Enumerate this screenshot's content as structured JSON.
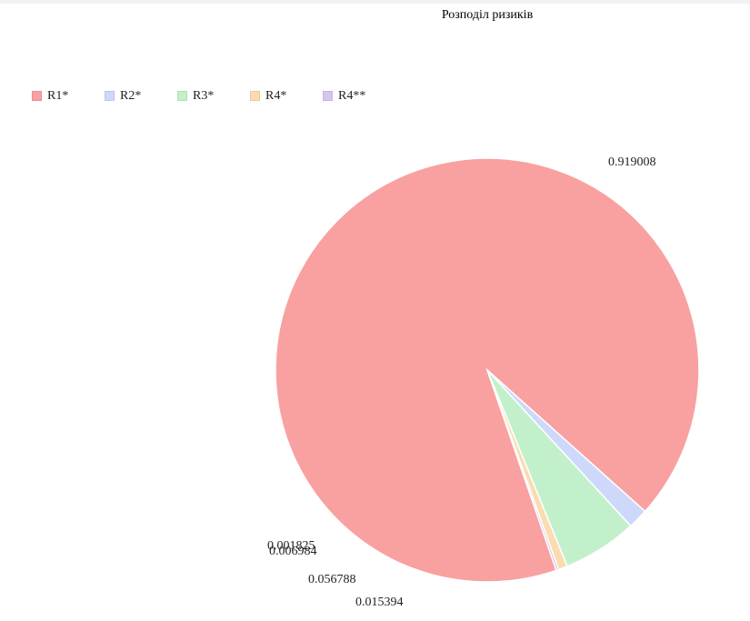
{
  "chart_data": {
    "type": "pie",
    "title": "Розподіл ризиків",
    "legend_position": "top-left",
    "categories": [
      "R1*",
      "R2*",
      "R3*",
      "R4*",
      "R4**"
    ],
    "values": [
      0.919008,
      0.015394,
      0.056788,
      0.006984,
      0.001825
    ],
    "value_labels": [
      "0.919008",
      "0.015394",
      "0.056788",
      "0.006984",
      "0.001825"
    ],
    "colors": [
      "#f9a0a0",
      "#cdd8fa",
      "#c2f0cb",
      "#fbdcb0",
      "#d7c4ef"
    ]
  }
}
